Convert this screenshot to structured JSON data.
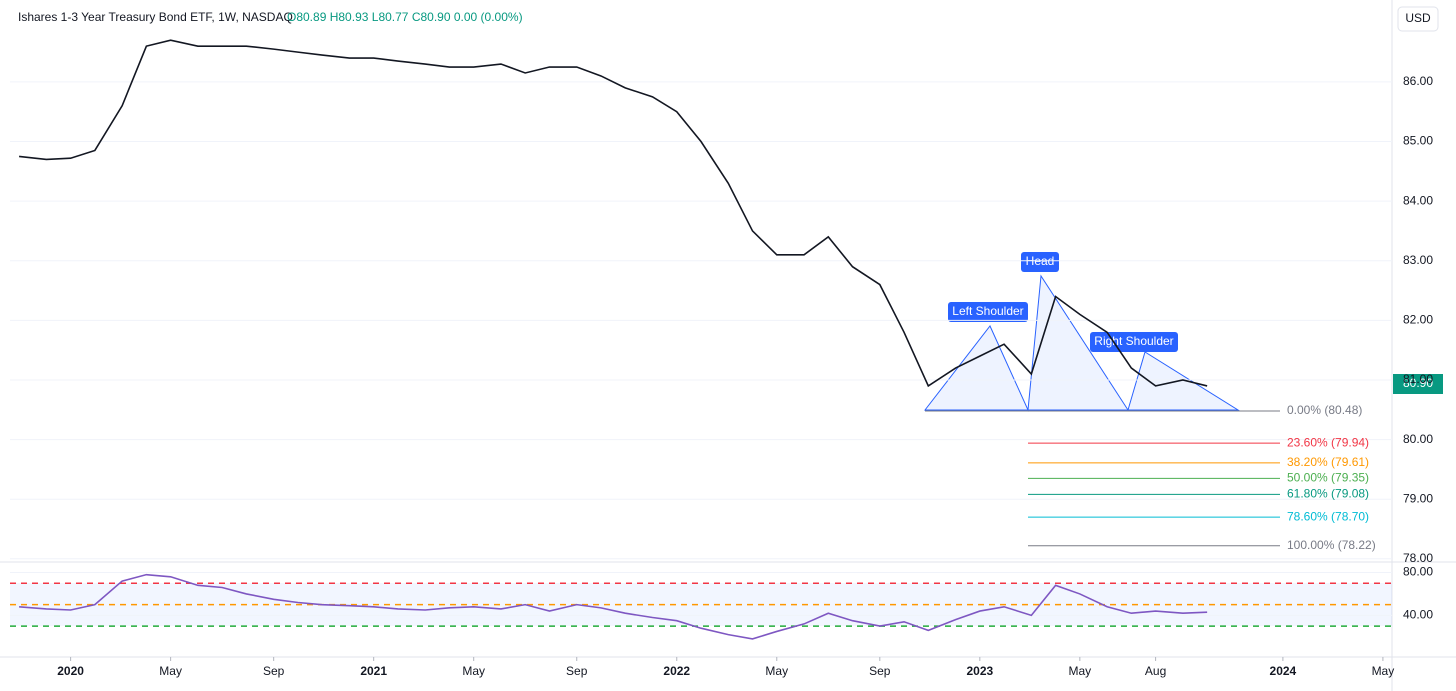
{
  "header": {
    "name": "Ishares 1-3 Year Treasury Bond ETF, 1W, NASDAQ",
    "ohlc": [
      "O80.89",
      "H80.93",
      "L80.77",
      "C80.90",
      "0.00 (0.00%)"
    ],
    "currency": "USD",
    "last_price": "80.90"
  },
  "annotations": [
    "Left Shoulder",
    "Head",
    "Right Shoulder"
  ],
  "chart_data": [
    {
      "type": "line",
      "color": "#131722",
      "x": [
        2019.83,
        2019.92,
        2020.0,
        2020.08,
        2020.17,
        2020.25,
        2020.33,
        2020.42,
        2020.5,
        2020.58,
        2020.67,
        2020.75,
        2020.83,
        2020.92,
        2021.0,
        2021.08,
        2021.17,
        2021.25,
        2021.33,
        2021.42,
        2021.5,
        2021.58,
        2021.67,
        2021.75,
        2021.83,
        2021.92,
        2022.0,
        2022.08,
        2022.17,
        2022.25,
        2022.33,
        2022.42,
        2022.5,
        2022.58,
        2022.67,
        2022.75,
        2022.83,
        2022.92,
        2023.0,
        2023.08,
        2023.17,
        2023.25,
        2023.33,
        2023.42,
        2023.5,
        2023.58,
        2023.67,
        2023.75
      ],
      "values": [
        84.75,
        84.7,
        84.72,
        84.85,
        85.6,
        86.6,
        86.7,
        86.6,
        86.6,
        86.6,
        86.55,
        86.5,
        86.45,
        86.4,
        86.4,
        86.35,
        86.3,
        86.25,
        86.25,
        86.3,
        86.15,
        86.25,
        86.25,
        86.1,
        85.9,
        85.75,
        85.5,
        85.0,
        84.3,
        83.5,
        83.1,
        83.1,
        83.4,
        82.9,
        82.6,
        81.8,
        80.9,
        81.2,
        81.4,
        81.6,
        81.1,
        82.4,
        82.1,
        81.8,
        81.2,
        80.9,
        81.0,
        80.9
      ],
      "xlim": [
        2019.8,
        2024.36
      ],
      "ylim": [
        77.98,
        87.24
      ],
      "yticks": [
        {
          "value": 78,
          "label": "78.00"
        },
        {
          "value": 79,
          "label": "79.00"
        },
        {
          "value": 80,
          "label": "80.00"
        },
        {
          "value": 81,
          "label": "81.00"
        },
        {
          "value": 82,
          "label": "82.00"
        },
        {
          "value": 83,
          "label": "83.00"
        },
        {
          "value": 84,
          "label": "84.00"
        },
        {
          "value": 85,
          "label": "85.00"
        },
        {
          "value": 86,
          "label": "86.00"
        }
      ],
      "fibonacci": [
        {
          "label": "0.00% (80.48)",
          "value": 80.48,
          "color": "#787b86"
        },
        {
          "label": "23.60% (79.94)",
          "value": 79.94,
          "color": "#f23645"
        },
        {
          "label": "38.20% (79.61)",
          "value": 79.61,
          "color": "#ff9800"
        },
        {
          "label": "50.00% (79.35)",
          "value": 79.35,
          "color": "#4caf50"
        },
        {
          "label": "61.80% (79.08)",
          "value": 79.08,
          "color": "#089981"
        },
        {
          "label": "78.60% (78.70)",
          "value": 78.7,
          "color": "#00bcd4"
        },
        {
          "label": "100.00% (78.22)",
          "value": 78.22,
          "color": "#787b86"
        }
      ]
    },
    {
      "type": "line",
      "color": "#7e57c2",
      "x": [
        2019.83,
        2019.92,
        2020.0,
        2020.08,
        2020.17,
        2020.25,
        2020.33,
        2020.42,
        2020.5,
        2020.58,
        2020.67,
        2020.75,
        2020.83,
        2020.92,
        2021.0,
        2021.08,
        2021.17,
        2021.25,
        2021.33,
        2021.42,
        2021.5,
        2021.58,
        2021.67,
        2021.75,
        2021.83,
        2021.92,
        2022.0,
        2022.08,
        2022.17,
        2022.25,
        2022.33,
        2022.42,
        2022.5,
        2022.58,
        2022.67,
        2022.75,
        2022.83,
        2022.92,
        2023.0,
        2023.08,
        2023.17,
        2023.25,
        2023.33,
        2023.42,
        2023.5,
        2023.58,
        2023.67,
        2023.75
      ],
      "values": [
        48,
        46,
        45,
        50,
        72,
        78,
        76,
        68,
        66,
        60,
        55,
        52,
        50,
        49,
        48,
        46,
        45,
        47,
        48,
        46,
        50,
        44,
        50,
        47,
        42,
        38,
        35,
        28,
        22,
        18,
        25,
        32,
        42,
        35,
        30,
        34,
        26,
        36,
        44,
        48,
        40,
        68,
        60,
        48,
        42,
        44,
        42,
        43
      ],
      "xlim": [
        2019.8,
        2024.36
      ],
      "ylim": [
        3,
        87
      ],
      "yticks": [
        {
          "value": 40,
          "label": "40.00"
        },
        {
          "value": 80,
          "label": "80.00"
        }
      ],
      "levels": [
        {
          "value": 70,
          "color": "#f23645"
        },
        {
          "value": 50,
          "color": "#ff9800"
        },
        {
          "value": 30,
          "color": "#22ab3a"
        }
      ],
      "xticks": [
        {
          "value": 2020,
          "label": "2020"
        },
        {
          "value": 2020.33,
          "label": "May"
        },
        {
          "value": 2020.67,
          "label": "Sep"
        },
        {
          "value": 2021,
          "label": "2021"
        },
        {
          "value": 2021.33,
          "label": "May"
        },
        {
          "value": 2021.67,
          "label": "Sep"
        },
        {
          "value": 2022,
          "label": "2022"
        },
        {
          "value": 2022.33,
          "label": "May"
        },
        {
          "value": 2022.67,
          "label": "Sep"
        },
        {
          "value": 2023,
          "label": "2023"
        },
        {
          "value": 2023.33,
          "label": "May"
        },
        {
          "value": 2023.58,
          "label": "Aug"
        },
        {
          "value": 2024,
          "label": "2024"
        },
        {
          "value": 2024.33,
          "label": "May"
        }
      ]
    }
  ]
}
